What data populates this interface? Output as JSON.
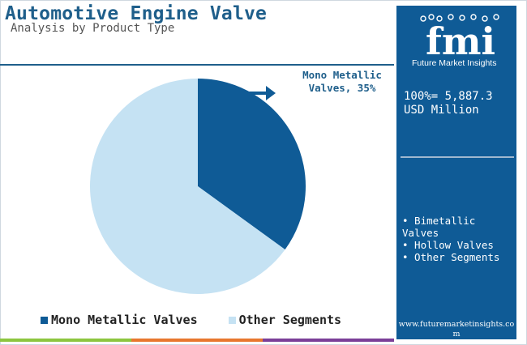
{
  "header": {
    "title": "Automotive Engine Valve",
    "subtitle": "Analysis by Product Type"
  },
  "chart_data": {
    "type": "pie",
    "slices": [
      {
        "label": "Mono Metallic Valves",
        "value": 35,
        "color": "#0f5b96"
      },
      {
        "label": "Other Segments",
        "value": 65,
        "color": "#c5e2f3"
      }
    ],
    "annotation": {
      "line1": "Mono Metallic",
      "line2": "Valves, 35%"
    },
    "legend_position": "bottom"
  },
  "legend": {
    "items": [
      {
        "label": "Mono Metallic Valves",
        "color": "#0f5b96"
      },
      {
        "label": "Other Segments",
        "color": "#c5e2f3"
      }
    ]
  },
  "sidebar": {
    "logo_letters": "fmi",
    "logo_text": "Future Market Insights",
    "market_size_line1": "100%= 5,887.3",
    "market_size_line2": "USD Million",
    "segments": [
      "• Bimetallic Valves",
      "• Hollow Valves",
      "• Other Segments"
    ],
    "website": "www.futuremarketinsights.com"
  },
  "colors": {
    "accent": "#0f5b96",
    "title": "#1f5f8b",
    "bottom_bar": [
      "#8cc63f",
      "#e8772e",
      "#7b3f98"
    ]
  }
}
